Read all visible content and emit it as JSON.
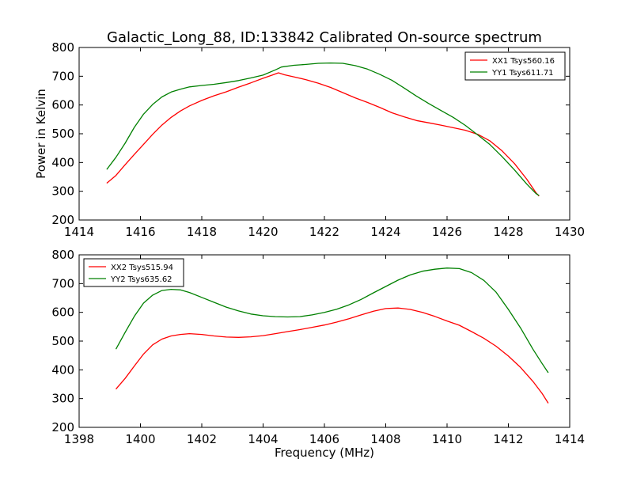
{
  "figure": {
    "title": "Galactic_Long_88, ID:133842 Calibrated On-source spectrum"
  },
  "chart_data": [
    {
      "type": "line",
      "title": "Galactic_Long_88, ID:133842 Calibrated On-source spectrum",
      "xlabel": "",
      "ylabel": "Power in Kelvin",
      "xlim": [
        1414,
        1430
      ],
      "ylim": [
        200,
        800
      ],
      "xticks": [
        1414,
        1416,
        1418,
        1420,
        1422,
        1424,
        1426,
        1428,
        1430
      ],
      "yticks": [
        200,
        300,
        400,
        500,
        600,
        700,
        800
      ],
      "legend_position": "top-right",
      "grid": false,
      "series": [
        {
          "name": "XX1 Tsys560.16",
          "color": "#ff0000",
          "points": [
            [
              1414.9,
              328
            ],
            [
              1415.2,
              355
            ],
            [
              1415.5,
              392
            ],
            [
              1415.8,
              428
            ],
            [
              1416.1,
              463
            ],
            [
              1416.4,
              498
            ],
            [
              1416.7,
              530
            ],
            [
              1417.0,
              557
            ],
            [
              1417.3,
              579
            ],
            [
              1417.6,
              597
            ],
            [
              1418.0,
              616
            ],
            [
              1418.4,
              632
            ],
            [
              1418.8,
              646
            ],
            [
              1419.2,
              662
            ],
            [
              1419.6,
              677
            ],
            [
              1420.0,
              693
            ],
            [
              1420.3,
              704
            ],
            [
              1420.5,
              712
            ],
            [
              1420.7,
              705
            ],
            [
              1421.0,
              698
            ],
            [
              1421.4,
              688
            ],
            [
              1421.8,
              676
            ],
            [
              1422.2,
              661
            ],
            [
              1422.6,
              643
            ],
            [
              1423.0,
              625
            ],
            [
              1423.4,
              609
            ],
            [
              1423.8,
              592
            ],
            [
              1424.2,
              573
            ],
            [
              1424.6,
              559
            ],
            [
              1425.0,
              546
            ],
            [
              1425.4,
              538
            ],
            [
              1425.8,
              530
            ],
            [
              1426.2,
              521
            ],
            [
              1426.6,
              512
            ],
            [
              1427.0,
              498
            ],
            [
              1427.4,
              475
            ],
            [
              1427.8,
              440
            ],
            [
              1428.2,
              396
            ],
            [
              1428.6,
              342
            ],
            [
              1428.9,
              295
            ],
            [
              1429.0,
              283
            ]
          ]
        },
        {
          "name": "YY1 Tsys611.71",
          "color": "#008000",
          "points": [
            [
              1414.9,
              376
            ],
            [
              1415.2,
              418
            ],
            [
              1415.5,
              467
            ],
            [
              1415.8,
              522
            ],
            [
              1416.1,
              568
            ],
            [
              1416.4,
              602
            ],
            [
              1416.7,
              628
            ],
            [
              1417.0,
              645
            ],
            [
              1417.3,
              655
            ],
            [
              1417.6,
              663
            ],
            [
              1418.0,
              668
            ],
            [
              1418.4,
              672
            ],
            [
              1418.8,
              678
            ],
            [
              1419.2,
              685
            ],
            [
              1419.6,
              694
            ],
            [
              1420.0,
              704
            ],
            [
              1420.4,
              722
            ],
            [
              1420.6,
              732
            ],
            [
              1421.0,
              738
            ],
            [
              1421.4,
              741
            ],
            [
              1421.8,
              745
            ],
            [
              1422.2,
              746
            ],
            [
              1422.6,
              745
            ],
            [
              1423.0,
              737
            ],
            [
              1423.4,
              725
            ],
            [
              1423.8,
              707
            ],
            [
              1424.2,
              686
            ],
            [
              1424.6,
              659
            ],
            [
              1425.0,
              631
            ],
            [
              1425.4,
              605
            ],
            [
              1425.8,
              581
            ],
            [
              1426.2,
              557
            ],
            [
              1426.6,
              529
            ],
            [
              1427.0,
              496
            ],
            [
              1427.4,
              462
            ],
            [
              1427.8,
              420
            ],
            [
              1428.2,
              374
            ],
            [
              1428.6,
              325
            ],
            [
              1428.9,
              292
            ],
            [
              1429.0,
              285
            ]
          ]
        }
      ]
    },
    {
      "type": "line",
      "title": "",
      "xlabel": "Frequency (MHz)",
      "ylabel": "",
      "xlim": [
        1398,
        1414
      ],
      "ylim": [
        200,
        800
      ],
      "xticks": [
        1398,
        1400,
        1402,
        1404,
        1406,
        1408,
        1410,
        1412,
        1414
      ],
      "yticks": [
        200,
        300,
        400,
        500,
        600,
        700,
        800
      ],
      "legend_position": "top-left",
      "grid": false,
      "series": [
        {
          "name": "XX2 Tsys515.94",
          "color": "#ff0000",
          "points": [
            [
              1399.2,
              333
            ],
            [
              1399.5,
              370
            ],
            [
              1399.8,
              413
            ],
            [
              1400.1,
              455
            ],
            [
              1400.4,
              487
            ],
            [
              1400.7,
              507
            ],
            [
              1401.0,
              518
            ],
            [
              1401.3,
              523
            ],
            [
              1401.6,
              526
            ],
            [
              1402.0,
              523
            ],
            [
              1402.4,
              518
            ],
            [
              1402.8,
              514
            ],
            [
              1403.2,
              513
            ],
            [
              1403.6,
              515
            ],
            [
              1404.0,
              519
            ],
            [
              1404.4,
              526
            ],
            [
              1404.8,
              533
            ],
            [
              1405.2,
              540
            ],
            [
              1405.6,
              548
            ],
            [
              1406.0,
              556
            ],
            [
              1406.4,
              566
            ],
            [
              1406.8,
              578
            ],
            [
              1407.2,
              591
            ],
            [
              1407.6,
              604
            ],
            [
              1408.0,
              613
            ],
            [
              1408.4,
              615
            ],
            [
              1408.8,
              610
            ],
            [
              1409.2,
              600
            ],
            [
              1409.6,
              586
            ],
            [
              1410.0,
              570
            ],
            [
              1410.4,
              555
            ],
            [
              1410.8,
              533
            ],
            [
              1411.2,
              510
            ],
            [
              1411.6,
              482
            ],
            [
              1412.0,
              448
            ],
            [
              1412.4,
              408
            ],
            [
              1412.8,
              360
            ],
            [
              1413.1,
              318
            ],
            [
              1413.3,
              284
            ]
          ]
        },
        {
          "name": "YY2 Tsys635.62",
          "color": "#008000",
          "points": [
            [
              1399.2,
              472
            ],
            [
              1399.5,
              530
            ],
            [
              1399.8,
              586
            ],
            [
              1400.1,
              632
            ],
            [
              1400.4,
              660
            ],
            [
              1400.7,
              676
            ],
            [
              1401.0,
              680
            ],
            [
              1401.3,
              678
            ],
            [
              1401.6,
              669
            ],
            [
              1402.0,
              652
            ],
            [
              1402.4,
              635
            ],
            [
              1402.8,
              618
            ],
            [
              1403.2,
              605
            ],
            [
              1403.6,
              594
            ],
            [
              1404.0,
              588
            ],
            [
              1404.4,
              585
            ],
            [
              1404.8,
              584
            ],
            [
              1405.2,
              585
            ],
            [
              1405.6,
              591
            ],
            [
              1406.0,
              600
            ],
            [
              1406.4,
              611
            ],
            [
              1406.8,
              626
            ],
            [
              1407.2,
              645
            ],
            [
              1407.6,
              668
            ],
            [
              1408.0,
              690
            ],
            [
              1408.4,
              712
            ],
            [
              1408.8,
              730
            ],
            [
              1409.2,
              743
            ],
            [
              1409.6,
              750
            ],
            [
              1410.0,
              754
            ],
            [
              1410.4,
              752
            ],
            [
              1410.8,
              738
            ],
            [
              1411.2,
              711
            ],
            [
              1411.6,
              670
            ],
            [
              1412.0,
              610
            ],
            [
              1412.4,
              545
            ],
            [
              1412.8,
              472
            ],
            [
              1413.1,
              422
            ],
            [
              1413.3,
              390
            ]
          ]
        }
      ]
    }
  ]
}
